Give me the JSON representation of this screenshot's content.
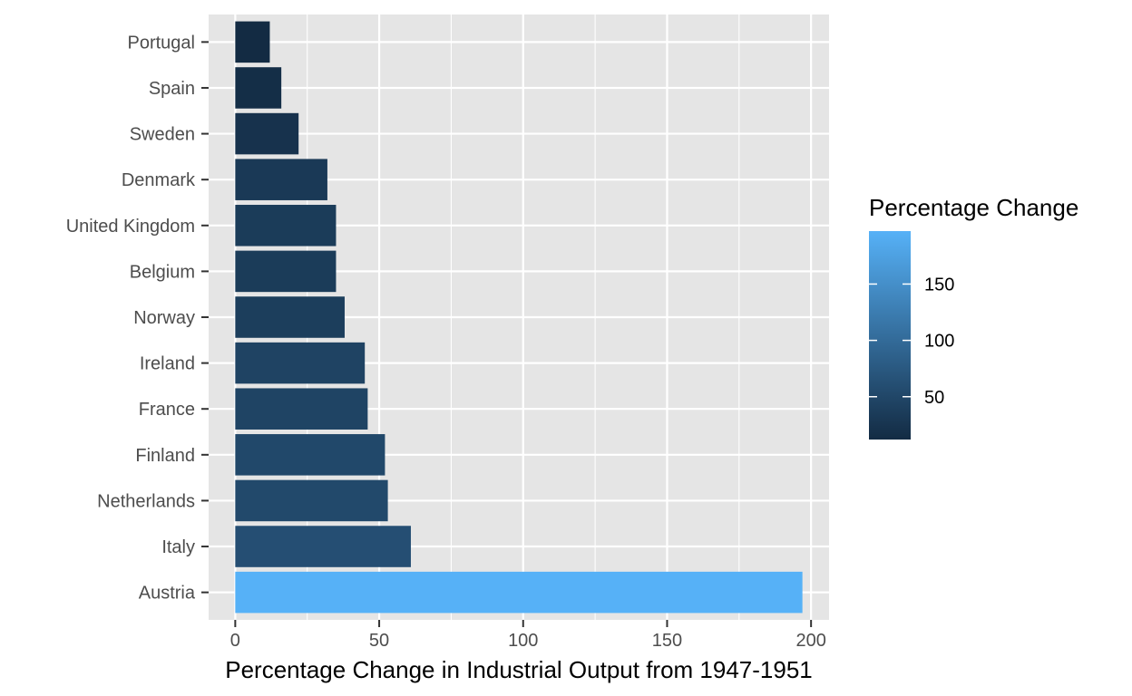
{
  "chart_data": {
    "type": "bar",
    "orientation": "horizontal",
    "xlabel": "Percentage Change in Industrial Output from 1947-1951",
    "ylabel": "",
    "categories": [
      "Austria",
      "Italy",
      "Netherlands",
      "Finland",
      "France",
      "Ireland",
      "Norway",
      "Belgium",
      "United Kingdom",
      "Denmark",
      "Sweden",
      "Spain",
      "Portugal"
    ],
    "values": [
      197,
      61,
      53,
      52,
      46,
      45,
      38,
      35,
      35,
      32,
      22,
      16,
      12
    ],
    "xlim": [
      -9.25,
      206.25
    ],
    "xticks": [
      0,
      50,
      100,
      150,
      200
    ],
    "xtick_labels": [
      "0",
      "50",
      "100",
      "150",
      "200"
    ],
    "grid": true,
    "panel_background": "#e5e5e5",
    "grid_color": "#ffffff",
    "color_scale": {
      "low_color": "#132b43",
      "high_color": "#56b1f7",
      "range": [
        12,
        197
      ]
    },
    "legend": {
      "title": "Percentage Change",
      "position": "right",
      "ticks": [
        50,
        100,
        150
      ],
      "tick_labels": [
        "50",
        "100",
        "150"
      ]
    }
  }
}
